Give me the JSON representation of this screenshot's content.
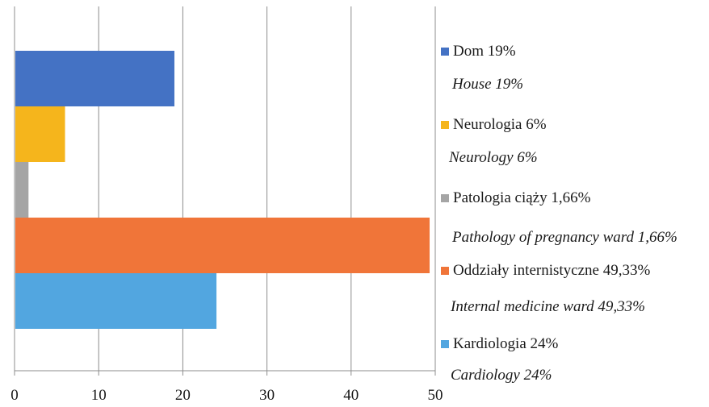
{
  "chart_data": {
    "type": "bar",
    "orientation": "horizontal",
    "xlim": [
      0,
      50
    ],
    "x_ticks": [
      "0",
      "10",
      "20",
      "30",
      "40",
      "50"
    ],
    "grid": "vertical",
    "legend_position": "right",
    "series": [
      {
        "name": "Dom 19%",
        "name_en": "House 19%",
        "value": 19,
        "color": "#4472C4"
      },
      {
        "name": "Neurologia 6%",
        "name_en": "Neurology 6%",
        "value": 6,
        "color": "#F5B51C"
      },
      {
        "name": "Patologia ciąży 1,66%",
        "name_en": "Pathology of pregnancy ward 1,66%",
        "value": 1.66,
        "color": "#A5A5A5"
      },
      {
        "name": "Oddziały internistyczne 49,33%",
        "name_en": "Internal medicine ward 49,33%",
        "value": 49.33,
        "color": "#F07539"
      },
      {
        "name": "Kardiologia 24%",
        "name_en": "Cardiology 24%",
        "value": 24,
        "color": "#52A6E0"
      }
    ]
  }
}
